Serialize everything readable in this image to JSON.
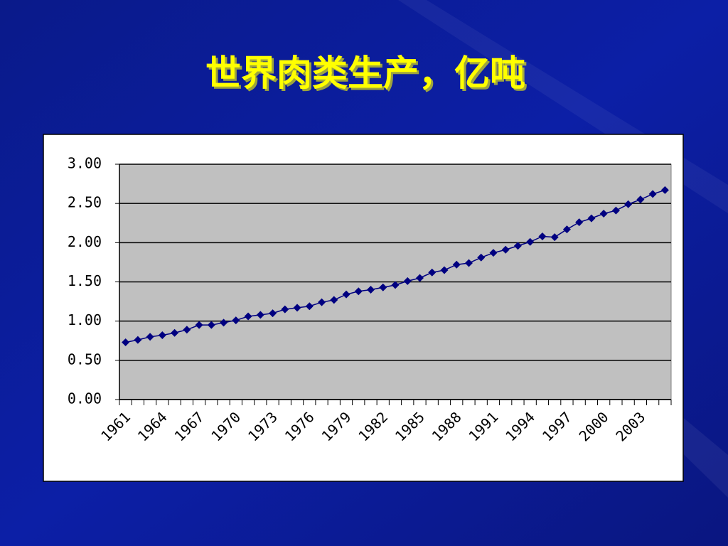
{
  "chart_data": {
    "type": "line",
    "title": "世界肉类生产，亿吨",
    "categories": [
      "1961",
      null,
      null,
      "1964",
      null,
      null,
      "1967",
      null,
      null,
      "1970",
      null,
      null,
      "1973",
      null,
      null,
      "1976",
      null,
      null,
      "1979",
      null,
      null,
      "1982",
      null,
      null,
      "1985",
      null,
      null,
      "1988",
      null,
      null,
      "1991",
      null,
      null,
      "1994",
      null,
      null,
      "1997",
      null,
      null,
      "2000",
      null,
      null,
      "2003",
      null,
      null
    ],
    "values": [
      0.73,
      0.76,
      0.8,
      0.82,
      0.85,
      0.89,
      0.95,
      0.95,
      0.98,
      1.01,
      1.06,
      1.08,
      1.1,
      1.15,
      1.17,
      1.19,
      1.24,
      1.27,
      1.34,
      1.38,
      1.4,
      1.43,
      1.46,
      1.51,
      1.55,
      1.62,
      1.65,
      1.72,
      1.74,
      1.81,
      1.87,
      1.91,
      1.96,
      2.01,
      2.08,
      2.07,
      2.17,
      2.26,
      2.31,
      2.37,
      2.41,
      2.49,
      2.55,
      2.62,
      2.67
    ],
    "color": "#000080",
    "ylim": [
      0,
      3
    ],
    "yticks": [
      {
        "value": 0,
        "label": "0.00"
      },
      {
        "value": 0.5,
        "label": "0.50"
      },
      {
        "value": 1,
        "label": "1.00"
      },
      {
        "value": 1.5,
        "label": "1.50"
      },
      {
        "value": 2,
        "label": "2.00"
      },
      {
        "value": 2.5,
        "label": "2.50"
      },
      {
        "value": 3,
        "label": "3.00"
      }
    ],
    "grid": true
  }
}
